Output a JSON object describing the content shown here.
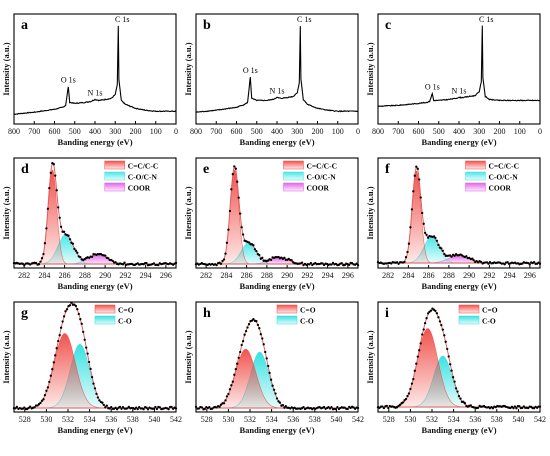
{
  "chart_data": [
    {
      "panel": "a",
      "type": "line",
      "xlabel": "Banding energy (eV)",
      "ylabel": "Intensity (a.u.)",
      "xlim": [
        800,
        0
      ],
      "xticks": [
        800,
        700,
        600,
        500,
        400,
        300,
        200,
        100,
        0
      ],
      "x": [
        800,
        700,
        600,
        560,
        545,
        532,
        525,
        500,
        450,
        420,
        400,
        380,
        320,
        300,
        290,
        285,
        282,
        270,
        250,
        200,
        150,
        100,
        50,
        0
      ],
      "y": [
        0.1,
        0.12,
        0.15,
        0.17,
        0.19,
        0.38,
        0.22,
        0.21,
        0.22,
        0.23,
        0.25,
        0.24,
        0.26,
        0.3,
        0.4,
        1.0,
        0.45,
        0.24,
        0.2,
        0.16,
        0.14,
        0.13,
        0.13,
        0.13
      ],
      "peaks": [
        {
          "label": "O 1s",
          "x": 532,
          "y": 0.38
        },
        {
          "label": "N 1s",
          "x": 400,
          "y": 0.25
        },
        {
          "label": "C 1s",
          "x": 285,
          "y": 1.0
        }
      ]
    },
    {
      "panel": "b",
      "type": "line",
      "xlabel": "Banding energy (eV)",
      "ylabel": "Intensity (a.u.)",
      "xlim": [
        800,
        0
      ],
      "xticks": [
        800,
        700,
        600,
        500,
        400,
        300,
        200,
        100,
        0
      ],
      "x": [
        800,
        700,
        600,
        560,
        545,
        532,
        525,
        500,
        450,
        420,
        400,
        380,
        320,
        300,
        290,
        285,
        282,
        270,
        250,
        200,
        150,
        100,
        50,
        0
      ],
      "y": [
        0.12,
        0.14,
        0.17,
        0.2,
        0.22,
        0.48,
        0.26,
        0.24,
        0.24,
        0.25,
        0.27,
        0.26,
        0.28,
        0.32,
        0.42,
        1.0,
        0.46,
        0.25,
        0.2,
        0.16,
        0.14,
        0.13,
        0.13,
        0.13
      ],
      "peaks": [
        {
          "label": "O 1s",
          "x": 532,
          "y": 0.48
        },
        {
          "label": "N 1s",
          "x": 400,
          "y": 0.27
        },
        {
          "label": "C 1s",
          "x": 285,
          "y": 1.0
        }
      ]
    },
    {
      "panel": "c",
      "type": "line",
      "xlabel": "Banding energy (eV)",
      "ylabel": "Intensity (a.u.)",
      "xlim": [
        800,
        0
      ],
      "xticks": [
        800,
        700,
        600,
        500,
        400,
        300,
        200,
        100,
        0
      ],
      "x": [
        800,
        700,
        600,
        560,
        545,
        532,
        525,
        500,
        450,
        420,
        400,
        380,
        320,
        300,
        290,
        285,
        282,
        270,
        250,
        200,
        150,
        100,
        50,
        0
      ],
      "y": [
        0.18,
        0.19,
        0.21,
        0.22,
        0.23,
        0.31,
        0.24,
        0.24,
        0.25,
        0.26,
        0.27,
        0.27,
        0.29,
        0.33,
        0.43,
        1.0,
        0.47,
        0.28,
        0.25,
        0.24,
        0.24,
        0.24,
        0.24,
        0.24
      ],
      "peaks": [
        {
          "label": "O 1s",
          "x": 532,
          "y": 0.31
        },
        {
          "label": "N 1s",
          "x": 400,
          "y": 0.27
        },
        {
          "label": "C 1s",
          "x": 285,
          "y": 1.0
        }
      ]
    },
    {
      "panel": "d",
      "type": "area",
      "xlabel": "Banding energy (eV)",
      "ylabel": "Intensity (a.u.)",
      "xlim": [
        281,
        297
      ],
      "xticks": [
        282,
        284,
        286,
        288,
        290,
        292,
        294,
        296
      ],
      "baseline": 0.04,
      "components": [
        {
          "name": "C=C/C-C",
          "center": 284.8,
          "fwhm": 1.0,
          "height": 0.96
        },
        {
          "name": "C-O/C-N",
          "center": 286.1,
          "fwhm": 1.8,
          "height": 0.3
        },
        {
          "name": "COOR",
          "center": 289.3,
          "fwhm": 2.2,
          "height": 0.1
        }
      ],
      "legend": [
        "C=C/C-C",
        "C-O/C-N",
        "COOR"
      ]
    },
    {
      "panel": "e",
      "type": "area",
      "xlabel": "Banding energy (eV)",
      "ylabel": "Intensity (a.u.)",
      "xlim": [
        281,
        297
      ],
      "xticks": [
        282,
        284,
        286,
        288,
        290,
        292,
        294,
        296
      ],
      "baseline": 0.04,
      "components": [
        {
          "name": "C=C/C-C",
          "center": 284.8,
          "fwhm": 1.0,
          "height": 0.96
        },
        {
          "name": "C-O/C-N",
          "center": 286.2,
          "fwhm": 1.7,
          "height": 0.22
        },
        {
          "name": "COOR",
          "center": 289.2,
          "fwhm": 2.2,
          "height": 0.07
        }
      ],
      "legend": [
        "C=C/C-C",
        "C-O/C-N",
        "COOR"
      ]
    },
    {
      "panel": "f",
      "type": "area",
      "xlabel": "Banding energy (eV)",
      "ylabel": "Intensity (a.u.)",
      "xlim": [
        281,
        297
      ],
      "xticks": [
        282,
        284,
        286,
        288,
        290,
        292,
        294,
        296
      ],
      "baseline": 0.05,
      "components": [
        {
          "name": "C=C/C-C",
          "center": 284.8,
          "fwhm": 1.0,
          "height": 0.94
        },
        {
          "name": "C-O/C-N",
          "center": 286.3,
          "fwhm": 1.8,
          "height": 0.27
        },
        {
          "name": "COOR",
          "center": 289.0,
          "fwhm": 2.4,
          "height": 0.08
        }
      ],
      "legend": [
        "C=C/C-C",
        "C-O/C-N",
        "COOR"
      ]
    },
    {
      "panel": "g",
      "type": "area",
      "xlabel": "Banding energy (eV)",
      "ylabel": "Intensity (a.u.)",
      "xlim": [
        527,
        542
      ],
      "xticks": [
        528,
        530,
        532,
        534,
        536,
        538,
        540,
        542
      ],
      "baseline": 0.04,
      "components": [
        {
          "name": "C=O",
          "center": 531.7,
          "fwhm": 2.3,
          "height": 0.76
        },
        {
          "name": "C-O",
          "center": 533.1,
          "fwhm": 2.1,
          "height": 0.65
        }
      ],
      "legend": [
        "C=O",
        "C-O"
      ]
    },
    {
      "panel": "h",
      "type": "area",
      "xlabel": "Banding energy (eV)",
      "ylabel": "Intensity (a.u.)",
      "xlim": [
        527,
        542
      ],
      "xticks": [
        528,
        530,
        532,
        534,
        536,
        538,
        540,
        542
      ],
      "baseline": 0.04,
      "components": [
        {
          "name": "C=O",
          "center": 531.6,
          "fwhm": 2.2,
          "height": 0.6
        },
        {
          "name": "C-O",
          "center": 532.9,
          "fwhm": 2.0,
          "height": 0.57
        }
      ],
      "legend": [
        "C=O",
        "C-O"
      ]
    },
    {
      "panel": "i",
      "type": "area",
      "xlabel": "Banding energy (eV)",
      "ylabel": "Intensity (a.u.)",
      "xlim": [
        527,
        542
      ],
      "xticks": [
        528,
        530,
        532,
        534,
        536,
        538,
        540,
        542
      ],
      "baseline": 0.05,
      "components": [
        {
          "name": "C=O",
          "center": 531.6,
          "fwhm": 2.2,
          "height": 0.8
        },
        {
          "name": "C-O",
          "center": 533.0,
          "fwhm": 2.0,
          "height": 0.52
        }
      ],
      "legend": [
        "C=O",
        "C-O"
      ]
    }
  ],
  "colors": {
    "C=C/C-C": "#f04a45",
    "C-O/C-N": "#3fe6e6",
    "COOR": "#e25ee8",
    "C=O": "#f04a45",
    "C-O": "#2fe0e0",
    "envelope": "#e06060",
    "baseline": "#e05050",
    "points": "#000000",
    "survey_line": "#000000"
  }
}
